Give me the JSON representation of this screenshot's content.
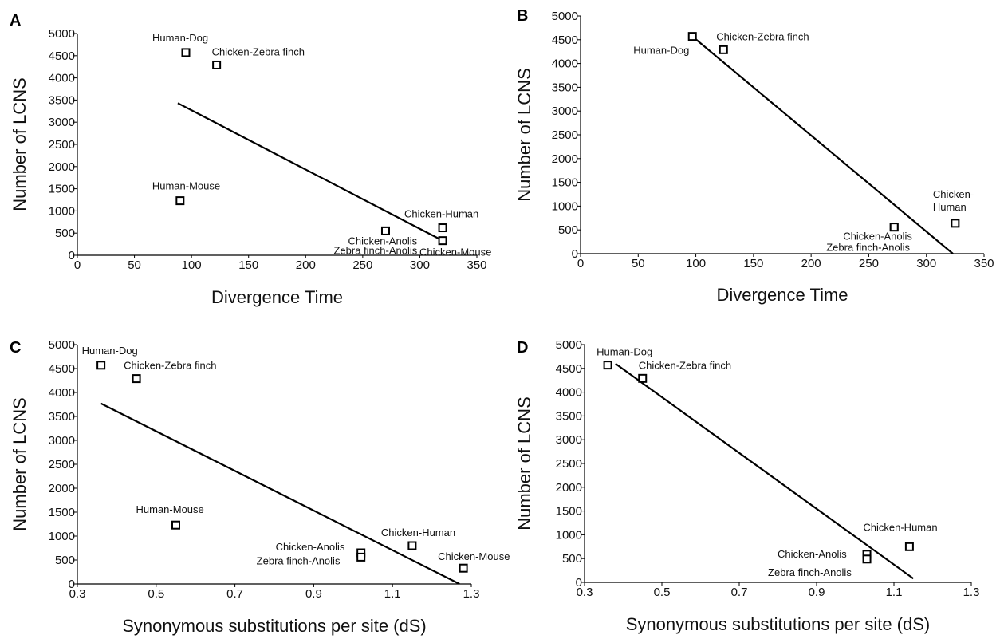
{
  "chart_data": [
    {
      "panel": "A",
      "type": "scatter",
      "xlabel": "Divergence Time",
      "ylabel": "Number of  LCNS",
      "xlim": [
        0,
        350
      ],
      "ylim": [
        0,
        5000
      ],
      "xticks": [
        0,
        50,
        100,
        150,
        200,
        250,
        300,
        350
      ],
      "xtick_labels": [
        "0",
        "50",
        "100",
        "150",
        "200",
        "250",
        "300",
        "350"
      ],
      "yticks": [
        0,
        500,
        1000,
        1500,
        2000,
        2500,
        3000,
        3500,
        4000,
        4500,
        5000
      ],
      "ytick_labels": [
        "0",
        "500",
        "1000",
        "1500",
        "2000",
        "2500",
        "3000",
        "3500",
        "4000",
        "4500",
        "5000"
      ],
      "points": [
        {
          "label": "Human-Dog",
          "x": 95,
          "y": 4570
        },
        {
          "label": "Chicken-Zebra finch",
          "x": 122,
          "y": 4290
        },
        {
          "label": "Human-Mouse",
          "x": 90,
          "y": 1230
        },
        {
          "label": "Chicken-Anolis",
          "x": 270,
          "y": 550
        },
        {
          "label": "Zebra finch-Anolis",
          "x": 270,
          "y": 550
        },
        {
          "label": "Chicken-Human",
          "x": 320,
          "y": 620
        },
        {
          "label": "Chicken-Mouse",
          "x": 320,
          "y": 330
        }
      ],
      "trendline": [
        [
          88,
          3430
        ],
        [
          320,
          330
        ]
      ]
    },
    {
      "panel": "B",
      "type": "scatter",
      "xlabel": "Divergence Time",
      "ylabel": "Number of  LCNS",
      "xlim": [
        0,
        350
      ],
      "ylim": [
        0,
        5000
      ],
      "xticks": [
        0,
        50,
        100,
        150,
        200,
        250,
        300,
        350
      ],
      "xtick_labels": [
        "0",
        "50",
        "100",
        "150",
        "200",
        "250",
        "300",
        "350"
      ],
      "yticks": [
        0,
        500,
        1000,
        1500,
        2000,
        2500,
        3000,
        3500,
        4000,
        4500,
        5000
      ],
      "ytick_labels": [
        "0",
        "500",
        "1000",
        "1500",
        "2000",
        "2500",
        "3000",
        "3500",
        "4000",
        "4500",
        "5000"
      ],
      "points": [
        {
          "label": "Human-Dog",
          "x": 97,
          "y": 4570
        },
        {
          "label": "Chicken-Zebra finch",
          "x": 124,
          "y": 4290
        },
        {
          "label": "Chicken-Anolis",
          "x": 272,
          "y": 560
        },
        {
          "label": "Zebra finch-Anolis",
          "x": 272,
          "y": 560
        },
        {
          "label": "Chicken-Human",
          "x": 325,
          "y": 640
        }
      ],
      "trendline": [
        [
          97,
          4570
        ],
        [
          323,
          0
        ]
      ]
    },
    {
      "panel": "C",
      "type": "scatter",
      "xlabel": "Synonymous substitutions per site (dS)",
      "ylabel": "Number of  LCNS",
      "xlim": [
        0.3,
        1.3
      ],
      "ylim": [
        0,
        5000
      ],
      "xticks": [
        0.3,
        0.5,
        0.7,
        0.9,
        1.1,
        1.3
      ],
      "xtick_labels": [
        "0.3",
        "0.5",
        "0.7",
        "0.9",
        "1.1",
        "1.3"
      ],
      "yticks": [
        0,
        500,
        1000,
        1500,
        2000,
        2500,
        3000,
        3500,
        4000,
        4500,
        5000
      ],
      "ytick_labels": [
        "0",
        "500",
        "1000",
        "1500",
        "2000",
        "2500",
        "3000",
        "3500",
        "4000",
        "4500",
        "5000"
      ],
      "points": [
        {
          "label": "Human-Dog",
          "x": 0.36,
          "y": 4570
        },
        {
          "label": "Chicken-Zebra finch",
          "x": 0.45,
          "y": 4290
        },
        {
          "label": "Human-Mouse",
          "x": 0.55,
          "y": 1230
        },
        {
          "label": "Chicken-Anolis",
          "x": 1.02,
          "y": 650
        },
        {
          "label": "Zebra finch-Anolis",
          "x": 1.02,
          "y": 560
        },
        {
          "label": "Chicken-Human",
          "x": 1.15,
          "y": 800
        },
        {
          "label": "Chicken-Mouse",
          "x": 1.28,
          "y": 330
        }
      ],
      "trendline": [
        [
          0.36,
          3770
        ],
        [
          1.27,
          0
        ]
      ]
    },
    {
      "panel": "D",
      "type": "scatter",
      "xlabel": "Synonymous substitutions per site (dS)",
      "ylabel": "Number of  LCNS",
      "xlim": [
        0.3,
        1.3
      ],
      "ylim": [
        0,
        5000
      ],
      "xticks": [
        0.3,
        0.5,
        0.7,
        0.9,
        1.1,
        1.3
      ],
      "xtick_labels": [
        "0.3",
        "0.5",
        "0.7",
        "0.9",
        "1.1",
        "1.3"
      ],
      "yticks": [
        0,
        500,
        1000,
        1500,
        2000,
        2500,
        3000,
        3500,
        4000,
        4500,
        5000
      ],
      "ytick_labels": [
        "0",
        "500",
        "1000",
        "1500",
        "2000",
        "2500",
        "3000",
        "3500",
        "4000",
        "4500",
        "5000"
      ],
      "points": [
        {
          "label": "Human-Dog",
          "x": 0.36,
          "y": 4570
        },
        {
          "label": "Chicken-Zebra finch",
          "x": 0.45,
          "y": 4290
        },
        {
          "label": "Chicken-Anolis",
          "x": 1.03,
          "y": 590
        },
        {
          "label": "Zebra finch-Anolis",
          "x": 1.03,
          "y": 490
        },
        {
          "label": "Chicken-Human",
          "x": 1.14,
          "y": 750
        }
      ],
      "trendline": [
        [
          0.38,
          4600
        ],
        [
          1.15,
          80
        ]
      ]
    }
  ]
}
